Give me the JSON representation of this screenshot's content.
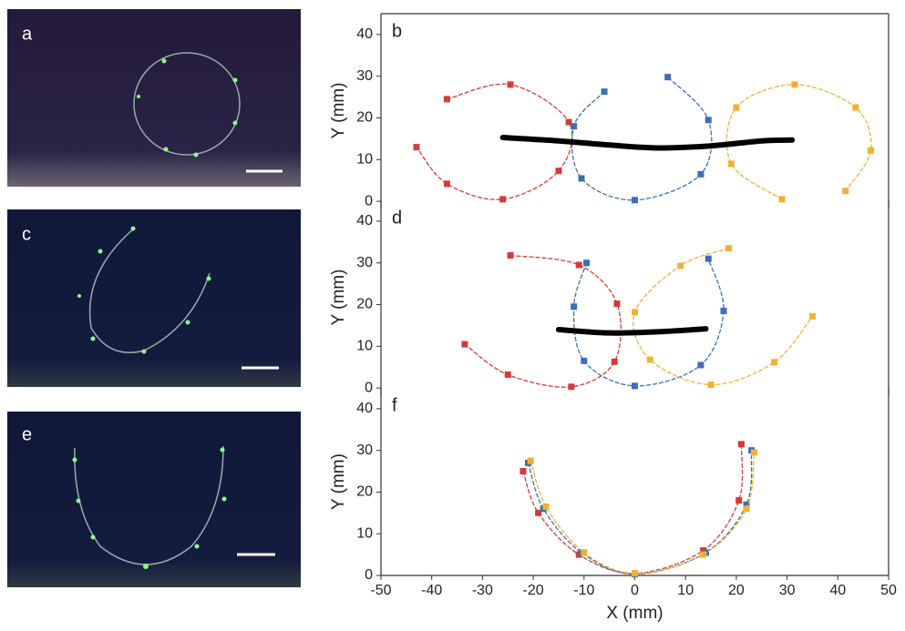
{
  "photos": [
    {
      "label": "a"
    },
    {
      "label": "c"
    },
    {
      "label": "e"
    }
  ],
  "chart_data": [
    {
      "type": "scatter",
      "panel_label": "b",
      "y_label": "Y (mm)",
      "xlim": [
        -50,
        50
      ],
      "ylim": [
        -1.5,
        45
      ],
      "yticks": [
        0,
        10,
        20,
        30,
        40
      ],
      "series": [
        {
          "color": "#d63a3a",
          "markers": true,
          "dashed": true,
          "x": [
            -37,
            -24.5,
            -13,
            -15,
            -26,
            -37,
            -43
          ],
          "values": [
            24.5,
            28,
            19,
            7.3,
            0.5,
            4.2,
            13
          ]
        },
        {
          "color": "#3d6fb6",
          "markers": true,
          "dashed": true,
          "x": [
            -6,
            -12,
            -10.5,
            0,
            13,
            14.5,
            6.5
          ],
          "values": [
            26.3,
            18,
            5.5,
            0.3,
            6.5,
            19.5,
            29.8
          ]
        },
        {
          "color": "#f1b133",
          "markers": true,
          "dashed": true,
          "x": [
            29,
            19,
            20,
            31.5,
            43.5,
            46.5,
            41.5
          ],
          "values": [
            0.5,
            9,
            22.5,
            28,
            22.5,
            12.2,
            2.5
          ]
        },
        {
          "color": "#000000",
          "markers": false,
          "dashed": false,
          "x": [
            -26,
            -15,
            -5,
            5,
            15,
            25,
            31
          ],
          "values": [
            15.3,
            14.5,
            13.5,
            12.8,
            13.3,
            14.5,
            14.7
          ]
        }
      ]
    },
    {
      "type": "scatter",
      "panel_label": "d",
      "y_label": "Y (mm)",
      "xlim": [
        -50,
        50
      ],
      "ylim": [
        -1.5,
        45
      ],
      "yticks": [
        0,
        10,
        20,
        30,
        40
      ],
      "series": [
        {
          "color": "#d63a3a",
          "markers": true,
          "dashed": true,
          "x": [
            -24.5,
            -11,
            -3.5,
            -4,
            -12.5,
            -25,
            -33.5
          ],
          "values": [
            31.8,
            29.5,
            20.2,
            6.3,
            0.3,
            3.2,
            10.5
          ]
        },
        {
          "color": "#3d6fb6",
          "markers": true,
          "dashed": true,
          "x": [
            -9.5,
            -12,
            -10,
            0,
            13,
            17.5,
            14.5
          ],
          "values": [
            30,
            19.5,
            6.5,
            0.5,
            5.5,
            18.5,
            31
          ]
        },
        {
          "color": "#f1b133",
          "markers": true,
          "dashed": true,
          "x": [
            18.5,
            9,
            0,
            3,
            15,
            27.5,
            35
          ],
          "values": [
            33.5,
            29.3,
            18.2,
            6.8,
            0.8,
            6.2,
            17.2
          ]
        },
        {
          "color": "#000000",
          "markers": false,
          "dashed": false,
          "x": [
            -15,
            -5,
            5,
            14
          ],
          "values": [
            14,
            13.2,
            13.5,
            14.2
          ]
        }
      ]
    },
    {
      "type": "scatter",
      "panel_label": "f",
      "y_label": "Y (mm)",
      "x_label": "X (mm)",
      "xlim": [
        -50,
        50
      ],
      "ylim": [
        0,
        45
      ],
      "yticks": [
        0,
        10,
        20,
        30,
        40
      ],
      "xticks": [
        -50,
        -40,
        -30,
        -20,
        -10,
        0,
        10,
        20,
        30,
        40,
        50
      ],
      "series": [
        {
          "color": "#d63a3a",
          "markers": true,
          "dashed": true,
          "x": [
            -22,
            -19,
            -11,
            0,
            13.5,
            20.5,
            21
          ],
          "values": [
            25,
            15,
            5,
            0.5,
            6,
            18,
            31.5
          ]
        },
        {
          "color": "#3d6fb6",
          "markers": true,
          "dashed": true,
          "x": [
            -21,
            -18,
            -10.5,
            0,
            14,
            22,
            23
          ],
          "values": [
            27,
            16,
            5.5,
            0.3,
            5.5,
            17,
            30
          ]
        },
        {
          "color": "#f1b133",
          "markers": true,
          "dashed": true,
          "x": [
            -20.5,
            -17.5,
            -10,
            0,
            13.5,
            22,
            23.5
          ],
          "values": [
            27.5,
            16.5,
            5.5,
            0.5,
            5,
            16,
            29.5
          ]
        }
      ]
    }
  ]
}
